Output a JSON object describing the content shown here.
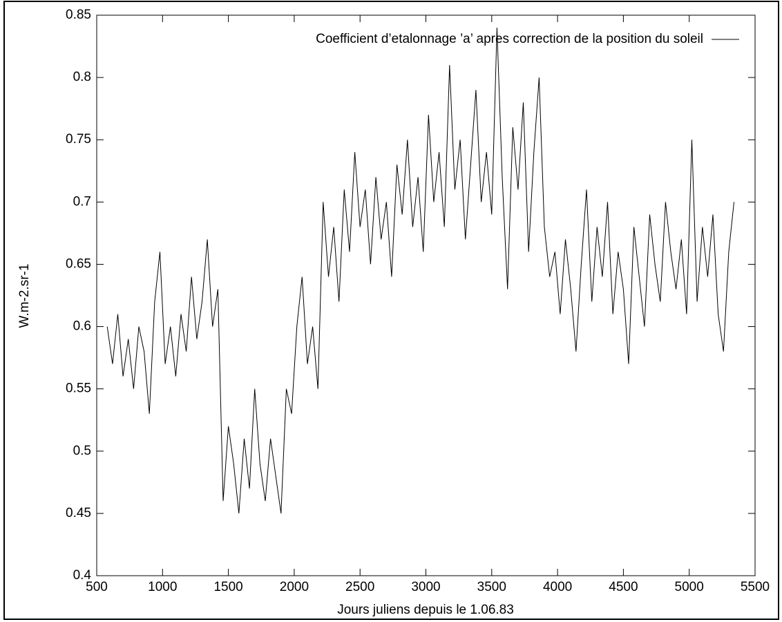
{
  "chart_data": {
    "type": "line",
    "ylabel": "W.m-2.sr-1",
    "xlabel": "Jours juliens depuis le 1.06.83",
    "legend": "top-right",
    "xlim": [
      500,
      5500
    ],
    "ylim": [
      0.4,
      0.85
    ],
    "xticks": [
      500,
      1000,
      1500,
      2000,
      2500,
      3000,
      3500,
      4000,
      4500,
      5000,
      5500
    ],
    "yticks": [
      0.4,
      0.45,
      0.5,
      0.55,
      0.6,
      0.65,
      0.7,
      0.75,
      0.8,
      0.85
    ],
    "x": [
      580,
      620,
      660,
      700,
      740,
      780,
      820,
      860,
      900,
      940,
      980,
      1020,
      1060,
      1100,
      1140,
      1180,
      1220,
      1260,
      1300,
      1340,
      1380,
      1420,
      1460,
      1500,
      1540,
      1580,
      1620,
      1660,
      1700,
      1740,
      1780,
      1820,
      1860,
      1900,
      1940,
      1980,
      2020,
      2060,
      2100,
      2140,
      2180,
      2220,
      2260,
      2300,
      2340,
      2380,
      2420,
      2460,
      2500,
      2540,
      2580,
      2620,
      2660,
      2700,
      2740,
      2780,
      2820,
      2860,
      2900,
      2940,
      2980,
      3020,
      3060,
      3100,
      3140,
      3180,
      3220,
      3260,
      3300,
      3340,
      3380,
      3420,
      3460,
      3500,
      3540,
      3580,
      3620,
      3660,
      3700,
      3740,
      3780,
      3820,
      3860,
      3900,
      3940,
      3980,
      4020,
      4060,
      4100,
      4140,
      4180,
      4220,
      4260,
      4300,
      4340,
      4380,
      4420,
      4460,
      4500,
      4540,
      4580,
      4620,
      4660,
      4700,
      4740,
      4780,
      4820,
      4860,
      4900,
      4940,
      4980,
      5020,
      5060,
      5100,
      5140,
      5180,
      5220,
      5260,
      5300,
      5340
    ],
    "series": [
      {
        "name": "Coefficient d’etalonnage ’a’ apres correction de la position du soleil",
        "color": "#000000",
        "values": [
          0.6,
          0.57,
          0.61,
          0.56,
          0.59,
          0.55,
          0.6,
          0.58,
          0.53,
          0.62,
          0.66,
          0.57,
          0.6,
          0.56,
          0.61,
          0.58,
          0.64,
          0.59,
          0.62,
          0.67,
          0.6,
          0.63,
          0.46,
          0.52,
          0.49,
          0.45,
          0.51,
          0.47,
          0.55,
          0.49,
          0.46,
          0.51,
          0.48,
          0.45,
          0.55,
          0.53,
          0.6,
          0.64,
          0.57,
          0.6,
          0.55,
          0.7,
          0.64,
          0.68,
          0.62,
          0.71,
          0.66,
          0.74,
          0.68,
          0.71,
          0.65,
          0.72,
          0.67,
          0.7,
          0.64,
          0.73,
          0.69,
          0.75,
          0.68,
          0.72,
          0.66,
          0.77,
          0.7,
          0.74,
          0.68,
          0.81,
          0.71,
          0.75,
          0.67,
          0.73,
          0.79,
          0.7,
          0.74,
          0.69,
          0.84,
          0.72,
          0.63,
          0.76,
          0.71,
          0.78,
          0.66,
          0.74,
          0.8,
          0.68,
          0.64,
          0.66,
          0.61,
          0.67,
          0.63,
          0.58,
          0.65,
          0.71,
          0.62,
          0.68,
          0.64,
          0.7,
          0.61,
          0.66,
          0.63,
          0.57,
          0.68,
          0.64,
          0.6,
          0.69,
          0.65,
          0.62,
          0.7,
          0.66,
          0.63,
          0.67,
          0.61,
          0.75,
          0.62,
          0.68,
          0.64,
          0.69,
          0.61,
          0.58,
          0.66,
          0.7
        ]
      }
    ]
  }
}
